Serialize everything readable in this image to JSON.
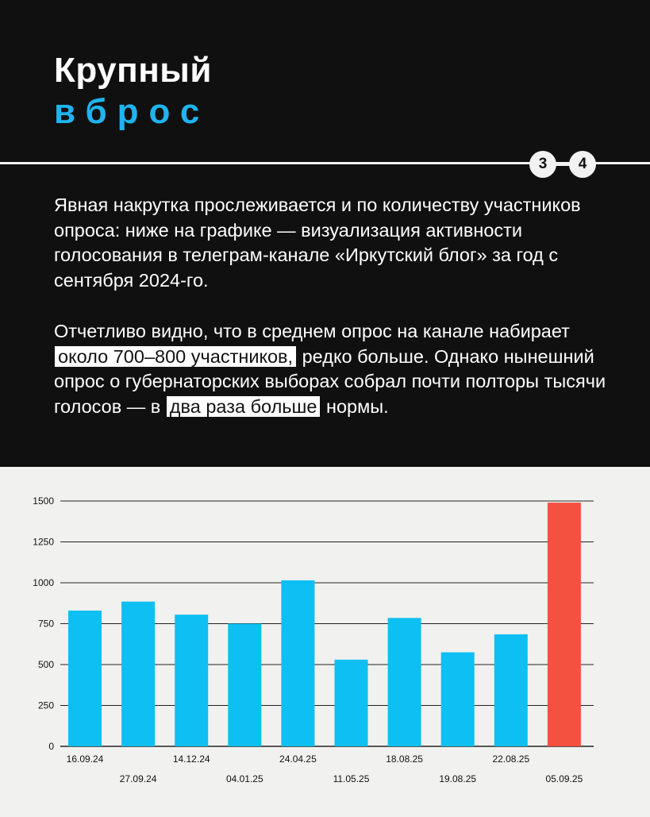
{
  "header": {
    "title_line1": "Крупный",
    "title_line2": "вброс",
    "pager_current": "3",
    "pager_total": "4"
  },
  "text": {
    "para1": "Явная накрутка прослеживается и по количеству участников опроса: ниже на графике — визуализация активности голосования в телеграм-канале «Иркутский блог» за год с сентября 2024-го.",
    "para2_a": "Отчетливо видно, что в среднем опрос на канале набирает",
    "para2_hl1": "около 700–800 участников,",
    "para2_b": "редко больше. Однако нынешний опрос о губернаторских выборах собрал почти полторы тысячи голосов — в",
    "para2_hl2": "два раза больше",
    "para2_c": "нормы."
  },
  "colors": {
    "accent": "#1fb4f0",
    "bar": "#0dbff2",
    "bar_highlight": "#f45140",
    "background_dark": "#101010"
  },
  "chart_data": {
    "type": "bar",
    "categories": [
      "16.09.24",
      "27.09.24",
      "14.12.24",
      "04.01.25",
      "24.04.25",
      "11.05.25",
      "18.08.25",
      "19.08.25",
      "22.08.25",
      "05.09.25"
    ],
    "values": [
      830,
      885,
      805,
      750,
      1015,
      530,
      785,
      575,
      685,
      1490
    ],
    "highlight_index": 9,
    "ylim": [
      0,
      1500
    ],
    "yticks": [
      0,
      250,
      500,
      750,
      1000,
      1250,
      1500
    ],
    "grid": true,
    "title": "",
    "xlabel": "",
    "ylabel": ""
  }
}
